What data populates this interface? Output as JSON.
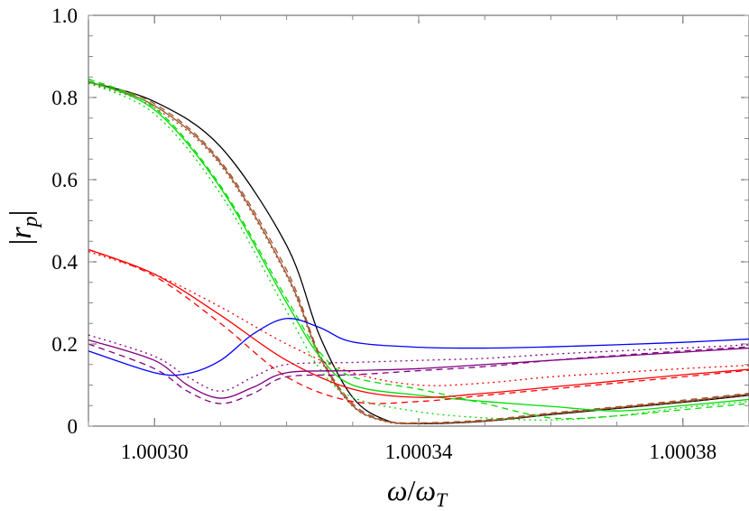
{
  "chart_data": {
    "type": "line",
    "title": "",
    "xlabel": "ω/ω_T",
    "ylabel": "|r_p|",
    "xlabel_parts": {
      "num": "ω",
      "slash": "/",
      "den": "ω",
      "den_sub": "T"
    },
    "ylabel_parts": {
      "bar_left": "|",
      "main": "r",
      "sub": "p",
      "bar_right": "|"
    },
    "xlim": [
      1.00029,
      1.00039
    ],
    "ylim": [
      0,
      1.0
    ],
    "x_ticks": [
      {
        "value": 1.0003,
        "label": "1.00030"
      },
      {
        "value": 1.00034,
        "label": "1.00034"
      },
      {
        "value": 1.00038,
        "label": "1.00038"
      }
    ],
    "y_ticks": [
      {
        "value": 0,
        "label": "0"
      },
      {
        "value": 0.2,
        "label": "0.2"
      },
      {
        "value": 0.4,
        "label": "0.4"
      },
      {
        "value": 0.6,
        "label": "0.6"
      },
      {
        "value": 0.8,
        "label": "0.8"
      },
      {
        "value": 1.0,
        "label": "1.0"
      }
    ],
    "grid": false,
    "legend": "none",
    "series": [
      {
        "color": "#000000",
        "dash": "solid",
        "x": [
          1.00029,
          1.0003,
          1.00031,
          1.00032,
          1.000325,
          1.00033,
          1.000335,
          1.00034,
          1.00035,
          1.00036,
          1.00037,
          1.00038,
          1.00039
        ],
        "y": [
          0.838,
          0.79,
          0.68,
          0.44,
          0.22,
          0.07,
          0.015,
          0.006,
          0.012,
          0.028,
          0.043,
          0.058,
          0.075
        ]
      },
      {
        "color": "#a0522d",
        "dash": "solid",
        "x": [
          1.00029,
          1.0003,
          1.00031,
          1.00032,
          1.000325,
          1.00033,
          1.000335,
          1.00034,
          1.00035,
          1.00036,
          1.00037,
          1.00038,
          1.00039
        ],
        "y": [
          0.838,
          0.78,
          0.64,
          0.37,
          0.17,
          0.05,
          0.012,
          0.007,
          0.013,
          0.03,
          0.045,
          0.06,
          0.078
        ]
      },
      {
        "color": "#a0522d",
        "dash": "dashed",
        "x": [
          1.00029,
          1.0003,
          1.00031,
          1.00032,
          1.000325,
          1.00033,
          1.000335,
          1.00034,
          1.00035,
          1.00036,
          1.00037,
          1.00038,
          1.00039
        ],
        "y": [
          0.84,
          0.785,
          0.645,
          0.38,
          0.175,
          0.055,
          0.014,
          0.008,
          0.015,
          0.032,
          0.047,
          0.063,
          0.08
        ]
      },
      {
        "color": "#a0522d",
        "dash": "dotted",
        "x": [
          1.00029,
          1.0003,
          1.00031,
          1.00032,
          1.000325,
          1.00033,
          1.000335,
          1.00034,
          1.00035,
          1.00036,
          1.00037,
          1.00038,
          1.00039
        ],
        "y": [
          0.836,
          0.775,
          0.635,
          0.365,
          0.165,
          0.048,
          0.011,
          0.006,
          0.012,
          0.029,
          0.044,
          0.059,
          0.076
        ]
      },
      {
        "color": "#00dd00",
        "dash": "solid",
        "x": [
          1.00029,
          1.0003,
          1.00031,
          1.00032,
          1.000325,
          1.00033,
          1.00034,
          1.00035,
          1.00036,
          1.00037,
          1.00038,
          1.00039
        ],
        "y": [
          0.84,
          0.77,
          0.58,
          0.3,
          0.17,
          0.1,
          0.075,
          0.06,
          0.048,
          0.037,
          0.05,
          0.065
        ]
      },
      {
        "color": "#00dd00",
        "dash": "dashed",
        "x": [
          1.00029,
          1.0003,
          1.00031,
          1.00032,
          1.000325,
          1.00033,
          1.00034,
          1.00035,
          1.00036,
          1.00037,
          1.00038,
          1.00039
        ],
        "y": [
          0.845,
          0.775,
          0.585,
          0.31,
          0.18,
          0.12,
          0.09,
          0.055,
          0.02,
          0.025,
          0.04,
          0.055
        ]
      },
      {
        "color": "#00dd00",
        "dash": "dotted",
        "x": [
          1.00029,
          1.0003,
          1.00031,
          1.00032,
          1.000325,
          1.00033,
          1.00034,
          1.00035,
          1.00036,
          1.00037,
          1.00038,
          1.00039
        ],
        "y": [
          0.835,
          0.76,
          0.565,
          0.28,
          0.14,
          0.07,
          0.035,
          0.02,
          0.015,
          0.025,
          0.045,
          0.06
        ]
      },
      {
        "color": "#ff0000",
        "dash": "solid",
        "x": [
          1.00029,
          1.0003,
          1.00031,
          1.00032,
          1.00033,
          1.00034,
          1.00035,
          1.00036,
          1.00037,
          1.00038,
          1.00039
        ],
        "y": [
          0.43,
          0.37,
          0.27,
          0.16,
          0.09,
          0.07,
          0.08,
          0.095,
          0.11,
          0.125,
          0.138
        ]
      },
      {
        "color": "#ff0000",
        "dash": "dashed",
        "x": [
          1.00029,
          1.0003,
          1.00031,
          1.00032,
          1.00033,
          1.00034,
          1.00035,
          1.00036,
          1.00037,
          1.00038,
          1.00039
        ],
        "y": [
          0.43,
          0.365,
          0.25,
          0.12,
          0.06,
          0.06,
          0.075,
          0.09,
          0.105,
          0.12,
          0.136
        ]
      },
      {
        "color": "#ff0000",
        "dash": "dotted",
        "x": [
          1.00029,
          1.0003,
          1.00031,
          1.00032,
          1.00033,
          1.00034,
          1.00035,
          1.00036,
          1.00037,
          1.00038,
          1.00039
        ],
        "y": [
          0.425,
          0.37,
          0.29,
          0.2,
          0.13,
          0.1,
          0.105,
          0.12,
          0.13,
          0.14,
          0.148
        ]
      },
      {
        "color": "#800080",
        "dash": "solid",
        "x": [
          1.00029,
          1.0003,
          1.000305,
          1.00031,
          1.000315,
          1.00032,
          1.00033,
          1.00034,
          1.00035,
          1.00036,
          1.00037,
          1.00038,
          1.00039
        ],
        "y": [
          0.21,
          0.16,
          0.1,
          0.068,
          0.095,
          0.13,
          0.135,
          0.14,
          0.15,
          0.16,
          0.17,
          0.18,
          0.19
        ]
      },
      {
        "color": "#800080",
        "dash": "dashed",
        "x": [
          1.00029,
          1.0003,
          1.000305,
          1.00031,
          1.000315,
          1.00032,
          1.00033,
          1.00034,
          1.00035,
          1.00036,
          1.00037,
          1.00038,
          1.00039
        ],
        "y": [
          0.2,
          0.14,
          0.085,
          0.055,
          0.08,
          0.12,
          0.125,
          0.135,
          0.145,
          0.16,
          0.172,
          0.183,
          0.193
        ]
      },
      {
        "color": "#800080",
        "dash": "dotted",
        "x": [
          1.00029,
          1.0003,
          1.000305,
          1.00031,
          1.000315,
          1.00032,
          1.00033,
          1.00034,
          1.00035,
          1.00036,
          1.00037,
          1.00038,
          1.00039
        ],
        "y": [
          0.222,
          0.17,
          0.12,
          0.085,
          0.12,
          0.15,
          0.155,
          0.16,
          0.165,
          0.175,
          0.183,
          0.19,
          0.198
        ]
      },
      {
        "color": "#0000ff",
        "dash": "solid",
        "x": [
          1.00029,
          1.0003,
          1.000305,
          1.00031,
          1.000315,
          1.00032,
          1.000325,
          1.00033,
          1.00034,
          1.00035,
          1.00036,
          1.00037,
          1.00038,
          1.00039
        ],
        "y": [
          0.183,
          0.13,
          0.128,
          0.16,
          0.225,
          0.262,
          0.24,
          0.205,
          0.192,
          0.19,
          0.193,
          0.198,
          0.204,
          0.212
        ]
      }
    ]
  }
}
